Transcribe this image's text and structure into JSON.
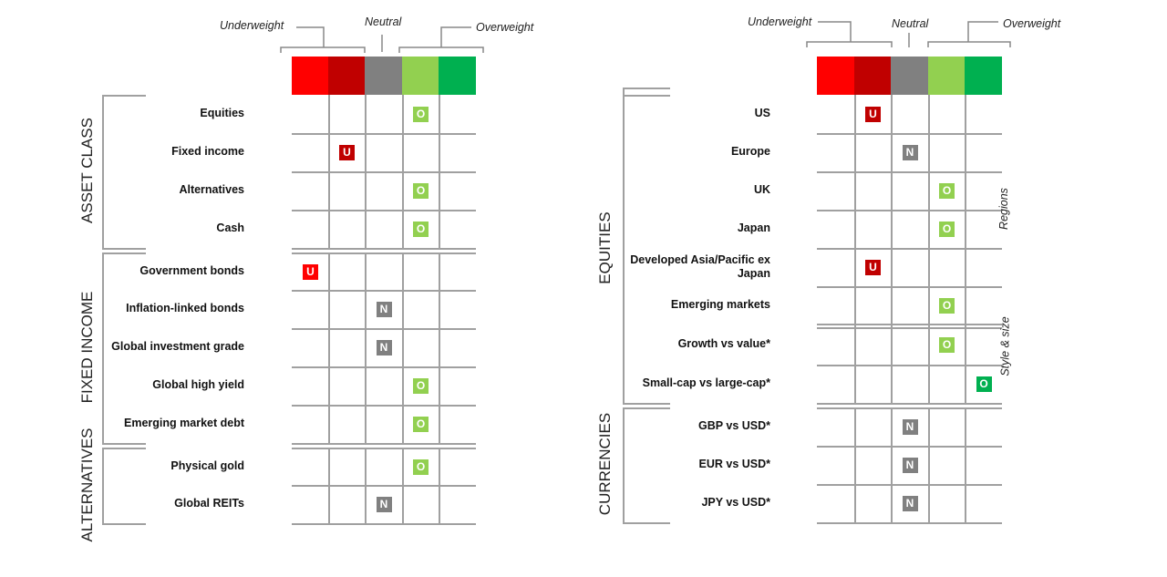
{
  "scale": {
    "labels": {
      "underweight": "Underweight",
      "neutral": "Neutral",
      "overweight": "Overweight"
    },
    "colors": [
      "#ff0000",
      "#c00000",
      "#808080",
      "#92d050",
      "#00b050"
    ],
    "marker_letters": [
      "U",
      "U",
      "N",
      "O",
      "O"
    ]
  },
  "left": {
    "groups": [
      {
        "name": "ASSET CLASS",
        "rows": [
          {
            "label": "Equities",
            "rating": 3
          },
          {
            "label": "Fixed income",
            "rating": 1
          },
          {
            "label": "Alternatives",
            "rating": 3
          },
          {
            "label": "Cash",
            "rating": 3
          }
        ]
      },
      {
        "name": "FIXED INCOME",
        "rows": [
          {
            "label": "Government bonds",
            "rating": 0
          },
          {
            "label": "Inflation-linked bonds",
            "rating": 2
          },
          {
            "label": "Global investment grade",
            "rating": 2
          },
          {
            "label": "Global high yield",
            "rating": 3
          },
          {
            "label": "Emerging market debt",
            "rating": 3
          }
        ]
      },
      {
        "name": "ALTERNATIVES",
        "rows": [
          {
            "label": "Physical gold",
            "rating": 3
          },
          {
            "label": "Global REITs",
            "rating": 2
          }
        ]
      }
    ]
  },
  "right": {
    "groups": [
      {
        "name": "EQUITIES",
        "rows": [
          {
            "label": "US",
            "rating": 1
          },
          {
            "label": "Europe",
            "rating": 2
          },
          {
            "label": "UK",
            "rating": 3
          },
          {
            "label": "Japan",
            "rating": 3
          },
          {
            "label": "Developed Asia/Pacific ex Japan",
            "rating": 1
          },
          {
            "label": "Emerging markets",
            "rating": 3
          },
          {
            "label": "Growth vs value*",
            "rating": 3
          },
          {
            "label": "Small-cap vs large-cap*",
            "rating": 4
          }
        ]
      },
      {
        "name": "CURRENCIES",
        "rows": [
          {
            "label": "GBP vs USD*",
            "rating": 2
          },
          {
            "label": "EUR vs USD*",
            "rating": 2
          },
          {
            "label": "JPY vs USD*",
            "rating": 2
          }
        ]
      }
    ],
    "subgroups": [
      "Regions",
      "Style & size"
    ]
  }
}
